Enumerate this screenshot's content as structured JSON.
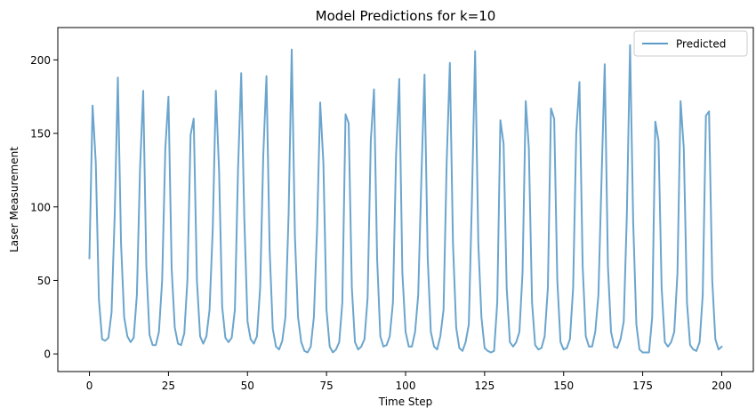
{
  "chart_data": {
    "type": "line",
    "title": "Model Predictions for k=10",
    "xlabel": "Time Step",
    "ylabel": "Laser Measurement",
    "xlim": [
      -10,
      210
    ],
    "ylim": [
      -12,
      222
    ],
    "xticks": [
      0,
      25,
      50,
      75,
      100,
      125,
      150,
      175,
      200
    ],
    "yticks": [
      0,
      50,
      100,
      150,
      200
    ],
    "grid": false,
    "legend_position": "top-right",
    "series": [
      {
        "name": "Predicted",
        "color": "#5b9bc8",
        "values": [
          65,
          169,
          130,
          37,
          10,
          9,
          11,
          28,
          95,
          188,
          75,
          25,
          12,
          8,
          11,
          40,
          125,
          179,
          60,
          13,
          6,
          6,
          15,
          50,
          140,
          175,
          58,
          18,
          7,
          6,
          14,
          50,
          149,
          160,
          50,
          12,
          7,
          12,
          30,
          85,
          179,
          125,
          32,
          11,
          8,
          11,
          30,
          125,
          191,
          92,
          22,
          10,
          7,
          12,
          45,
          135,
          189,
          70,
          17,
          5,
          3,
          9,
          25,
          95,
          207,
          80,
          25,
          8,
          2,
          1,
          5,
          25,
          85,
          171,
          130,
          30,
          5,
          1,
          3,
          8,
          35,
          163,
          157,
          45,
          8,
          3,
          5,
          10,
          38,
          145,
          180,
          65,
          12,
          5,
          6,
          12,
          35,
          135,
          187,
          55,
          15,
          5,
          5,
          15,
          40,
          120,
          190,
          65,
          15,
          5,
          3,
          12,
          30,
          130,
          198,
          75,
          18,
          4,
          2,
          8,
          20,
          105,
          206,
          75,
          25,
          4,
          2,
          1,
          2,
          35,
          159,
          143,
          45,
          8,
          5,
          8,
          15,
          55,
          172,
          140,
          35,
          6,
          3,
          4,
          12,
          45,
          167,
          160,
          50,
          8,
          3,
          4,
          10,
          45,
          150,
          185,
          60,
          12,
          5,
          5,
          15,
          40,
          120,
          197,
          60,
          15,
          5,
          4,
          10,
          22,
          95,
          210,
          90,
          20,
          3,
          1,
          1,
          1,
          25,
          158,
          145,
          45,
          8,
          5,
          8,
          15,
          55,
          172,
          140,
          35,
          6,
          3,
          2,
          8,
          40,
          162,
          165,
          50,
          10,
          3,
          5
        ]
      }
    ]
  }
}
